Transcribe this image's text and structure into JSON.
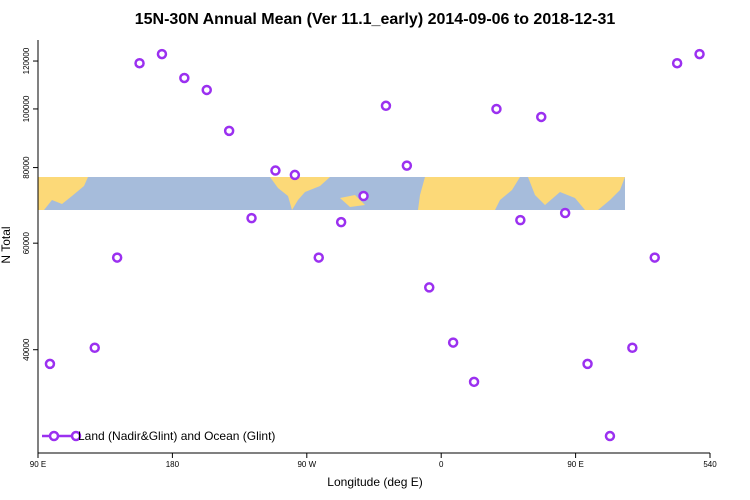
{
  "chart_data": {
    "type": "scatter",
    "title": "15N-30N Annual Mean (Ver 11.1_early)   2014-09-06 to 2018-12-31",
    "xlabel": "Longitude (deg E)",
    "ylabel": "N Total",
    "xlim": [
      90,
      540
    ],
    "ylim": [
      27000,
      130000
    ],
    "ylog": true,
    "xticks": [
      {
        "value": 90,
        "label": "90 E"
      },
      180,
      {
        "value": 270,
        "label": "90 W"
      },
      {
        "value": 360,
        "label": "0"
      },
      {
        "value": 450,
        "label": "90 E"
      },
      540
    ],
    "yticks": [
      40000,
      60000,
      80000,
      100000,
      120000
    ],
    "legend": "bottom left",
    "series": [
      {
        "name": "Land (Nadir&Glint) and Ocean (Glint)",
        "color": "#9b30f0",
        "x": [
          98,
          128,
          143,
          158,
          173,
          188,
          203,
          218,
          233,
          249,
          262,
          278,
          293,
          308,
          323,
          337,
          352,
          368,
          382,
          397,
          413,
          427,
          443,
          458,
          473,
          488,
          503,
          518,
          533
        ],
        "values": [
          37900,
          40300,
          56800,
          119000,
          123200,
          112500,
          107500,
          92000,
          66000,
          79100,
          77800,
          56800,
          65000,
          71800,
          101200,
          80600,
          50700,
          41100,
          35400,
          100000,
          65500,
          97000,
          67300,
          37900,
          28800,
          40300,
          56800,
          119000,
          123200
        ]
      }
    ]
  }
}
